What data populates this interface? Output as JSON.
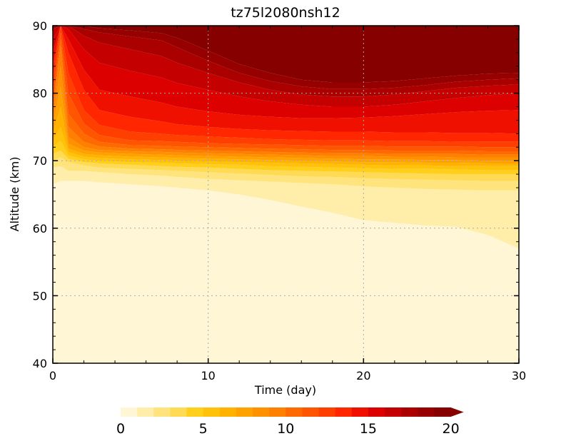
{
  "chart_data": {
    "type": "heatmap",
    "title": "tz75l2080nsh12",
    "xlabel": "Time (day)",
    "ylabel": "Altitude (km)",
    "xlim": [
      0,
      30
    ],
    "ylim": [
      40,
      90
    ],
    "x_ticks": [
      "0",
      "10",
      "20",
      "30"
    ],
    "y_ticks": [
      "40",
      "50",
      "60",
      "70",
      "80",
      "90"
    ],
    "grid": "dotted",
    "colorbar": {
      "orientation": "horizontal",
      "placement": "bottom",
      "extend": "max",
      "min": 0,
      "max": 20,
      "step": 1,
      "tick_labels": [
        "0",
        "5",
        "10",
        "15",
        "20"
      ],
      "colors": [
        "#fff6d6",
        "#ffeeaa",
        "#ffe47e",
        "#ffda55",
        "#ffcf1c",
        "#ffc109",
        "#ffb300",
        "#ffa200",
        "#ff9100",
        "#ff7f00",
        "#ff6a00",
        "#ff5500",
        "#ff3f00",
        "#ff2600",
        "#f01000",
        "#dd0000",
        "#c40000",
        "#aa0000",
        "#960000",
        "#870000"
      ]
    },
    "x": [
      0,
      0.5,
      1,
      2,
      3,
      5,
      7,
      8,
      10,
      12,
      14,
      16,
      18,
      20,
      22,
      24,
      26,
      28,
      30
    ],
    "boundaries": [
      {
        "level": 1,
        "altitude": [
          66.5,
          67,
          67,
          67,
          66.8,
          66.5,
          66.2,
          66,
          65.6,
          65,
          64.2,
          63.2,
          62.3,
          61.2,
          60.8,
          60.4,
          60.2,
          59,
          57
        ]
      },
      {
        "level": 2,
        "altitude": [
          69,
          69.2,
          68.5,
          68.5,
          68.3,
          68,
          67.8,
          67.6,
          67.3,
          67.1,
          66.9,
          66.7,
          66.5,
          66.2,
          66,
          65.8,
          65.7,
          65.6,
          65.6
        ]
      },
      {
        "level": 3,
        "altitude": [
          70,
          70.5,
          69.8,
          69.3,
          69,
          68.8,
          68.6,
          68.5,
          68.3,
          68.1,
          67.9,
          67.7,
          67.6,
          67.4,
          67.3,
          67.2,
          67.1,
          67,
          67
        ]
      },
      {
        "level": 4,
        "altitude": [
          71,
          71.5,
          70.3,
          69.8,
          69.6,
          69.4,
          69.2,
          69.1,
          69,
          68.8,
          68.6,
          68.5,
          68.4,
          68.3,
          68.2,
          68.1,
          68,
          68,
          68
        ]
      },
      {
        "level": 5,
        "altitude": [
          72,
          73,
          70.8,
          70.2,
          70,
          69.8,
          69.7,
          69.6,
          69.5,
          69.4,
          69.2,
          69.1,
          69,
          68.9,
          68.8,
          68.8,
          68.7,
          68.6,
          68.6
        ]
      },
      {
        "level": 6,
        "altitude": [
          73,
          75,
          71.3,
          70.6,
          70.4,
          70.2,
          70.1,
          70,
          69.9,
          69.8,
          69.7,
          69.6,
          69.5,
          69.4,
          69.3,
          69.3,
          69.2,
          69.2,
          69.2
        ]
      },
      {
        "level": 7,
        "altitude": [
          74,
          78,
          71.8,
          71,
          70.8,
          70.6,
          70.5,
          70.4,
          70.3,
          70.2,
          70.1,
          70,
          69.9,
          69.8,
          69.8,
          69.7,
          69.7,
          69.6,
          69.6
        ]
      },
      {
        "level": 8,
        "altitude": [
          75,
          81,
          72.5,
          71.5,
          71.2,
          71,
          70.9,
          70.8,
          70.7,
          70.6,
          70.5,
          70.4,
          70.3,
          70.2,
          70.2,
          70.1,
          70.1,
          70,
          70
        ]
      },
      {
        "level": 9,
        "altitude": [
          76,
          84,
          73.5,
          72,
          71.6,
          71.4,
          71.3,
          71.2,
          71.1,
          71,
          70.9,
          70.8,
          70.7,
          70.7,
          70.6,
          70.6,
          70.5,
          70.5,
          70.5
        ]
      },
      {
        "level": 10,
        "altitude": [
          77,
          87,
          75,
          72.8,
          72.1,
          71.8,
          71.7,
          71.6,
          71.5,
          71.4,
          71.3,
          71.2,
          71.1,
          71.1,
          71,
          71,
          71,
          70.9,
          70.9
        ]
      },
      {
        "level": 11,
        "altitude": [
          78,
          88,
          77,
          74,
          72.8,
          72.3,
          72.2,
          72.1,
          72,
          71.9,
          71.8,
          71.7,
          71.6,
          71.6,
          71.5,
          71.5,
          71.5,
          71.4,
          71.4
        ]
      },
      {
        "level": 12,
        "altitude": [
          80,
          89,
          80,
          75.5,
          73.8,
          73,
          72.9,
          72.8,
          72.6,
          72.5,
          72.4,
          72.3,
          72.2,
          72.2,
          72.1,
          72.1,
          72.1,
          72,
          72
        ]
      },
      {
        "level": 13,
        "altitude": [
          82,
          90,
          83,
          77.5,
          75.3,
          74.3,
          74,
          73.8,
          73.6,
          73.4,
          73.2,
          73.1,
          73,
          73,
          72.9,
          72.9,
          72.8,
          72.8,
          72.8
        ]
      },
      {
        "level": 14,
        "altitude": [
          84,
          90,
          86,
          80.5,
          77.5,
          76.5,
          75.8,
          75.4,
          75,
          74.7,
          74.5,
          74.4,
          74.3,
          74.3,
          74.2,
          74.2,
          74.1,
          74.1,
          74
        ]
      },
      {
        "level": 15,
        "altitude": [
          86,
          90,
          88,
          83.5,
          80.5,
          79.5,
          78.6,
          78,
          77.3,
          76.8,
          76.5,
          76.3,
          76.3,
          76.4,
          76.6,
          76.9,
          77.2,
          77.4,
          77.5
        ]
      },
      {
        "level": 16,
        "altitude": [
          88,
          90,
          89.5,
          86.5,
          84.5,
          83.3,
          82.3,
          81.5,
          80.5,
          79.5,
          78.8,
          78.3,
          78,
          78,
          78.3,
          78.8,
          79.3,
          79.7,
          80
        ]
      },
      {
        "level": 17,
        "altitude": [
          89.5,
          90,
          90,
          88.5,
          87.5,
          86.5,
          85.5,
          84.5,
          83,
          81.6,
          80.5,
          79.8,
          79.5,
          79.5,
          79.8,
          80.3,
          80.8,
          81.1,
          81.3
        ]
      },
      {
        "level": 18,
        "altitude": [
          90,
          90,
          90,
          89.5,
          89,
          88.4,
          87.8,
          86.8,
          84.8,
          83,
          81.8,
          81,
          80.6,
          80.6,
          80.8,
          81.2,
          81.7,
          82,
          82.2
        ]
      },
      {
        "level": 19,
        "altitude": [
          90,
          90,
          90,
          90,
          89.6,
          89.3,
          88.9,
          88.2,
          86.3,
          84.3,
          83,
          82,
          81.6,
          81.6,
          81.8,
          82.2,
          82.6,
          82.9,
          83
        ]
      },
      {
        "level": 20,
        "altitude": [
          90,
          90,
          90,
          90,
          90,
          90,
          90,
          90,
          90,
          90,
          90,
          90,
          90,
          90,
          90,
          90,
          90,
          90,
          90
        ]
      }
    ],
    "upper_boundary_of_darkest_band": [
      90,
      90,
      90,
      90,
      90,
      89.8,
      89.4,
      89,
      88.5,
      88.3,
      88.2,
      88.2,
      88.3,
      88.4,
      88.5,
      88.6,
      88.8,
      89.2,
      89.4
    ]
  }
}
